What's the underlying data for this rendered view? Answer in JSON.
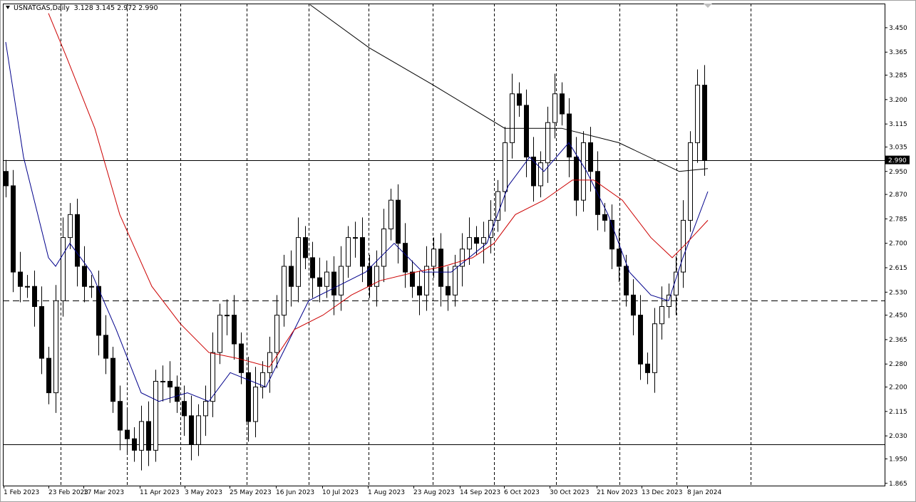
{
  "header": {
    "symbol": "USNATGAS,Daily",
    "ohlc": "3.128 3.145 2.972 2.990"
  },
  "current_price_label": "2.990",
  "colors": {
    "background": "#ffffff",
    "candle_up": "#ffffff",
    "candle_down": "#000000",
    "ma_fast": "#00008b",
    "ma_mid": "#cc0000",
    "ma_slow": "#000000",
    "price_label_bg": "#000000"
  },
  "chart_data": {
    "type": "candlestick",
    "title": "USNATGAS,Daily",
    "ylim": [
      1.857,
      3.534
    ],
    "grid": false,
    "y_ticks": [
      "3.450",
      "3.365",
      "3.285",
      "3.200",
      "3.115",
      "3.035",
      "2.950",
      "2.870",
      "2.785",
      "2.700",
      "2.615",
      "2.530",
      "2.450",
      "2.365",
      "2.280",
      "2.200",
      "2.115",
      "2.030",
      "1.950",
      "1.865"
    ],
    "x_ticks": [
      "1 Feb 2023",
      "23 Feb 2023",
      "17 Mar 2023",
      "11 Apr 2023",
      "3 May 2023",
      "25 May 2023",
      "16 Jun 2023",
      "10 Jul 2023",
      "1 Aug 2023",
      "23 Aug 2023",
      "14 Sep 2023",
      "6 Oct 2023",
      "30 Oct 2023",
      "21 Nov 2023",
      "13 Dec 2023",
      "8 Jan 2024"
    ],
    "horizontal_lines": [
      {
        "value": 2.99,
        "style": "solid"
      },
      {
        "value": 2.5,
        "style": "dashed"
      },
      {
        "value": 2.0,
        "style": "solid"
      }
    ],
    "closes": [
      2.9,
      2.6,
      2.55,
      2.55,
      2.48,
      2.3,
      2.18,
      2.5,
      2.72,
      2.8,
      2.62,
      2.55,
      2.55,
      2.38,
      2.3,
      2.15,
      2.05,
      2.02,
      1.98,
      2.08,
      1.98,
      2.22,
      2.22,
      2.2,
      2.15,
      2.1,
      2.0,
      2.1,
      2.15,
      2.32,
      2.45,
      2.45,
      2.35,
      2.25,
      2.08,
      2.2,
      2.25,
      2.32,
      2.45,
      2.62,
      2.55,
      2.72,
      2.65,
      2.58,
      2.55,
      2.6,
      2.52,
      2.62,
      2.72,
      2.72,
      2.62,
      2.55,
      2.62,
      2.75,
      2.85,
      2.7,
      2.6,
      2.55,
      2.52,
      2.62,
      2.68,
      2.55,
      2.52,
      2.62,
      2.68,
      2.72,
      2.7,
      2.72,
      2.78,
      2.88,
      3.05,
      3.22,
      3.18,
      3.0,
      2.9,
      2.98,
      3.12,
      3.22,
      3.15,
      3.0,
      2.85,
      3.05,
      2.95,
      2.8,
      2.78,
      2.68,
      2.62,
      2.52,
      2.45,
      2.28,
      2.25,
      2.42,
      2.48,
      2.52,
      2.6,
      2.78,
      3.05,
      3.25,
      2.99
    ],
    "moving_averages": [
      {
        "color": "#00008b",
        "points": [
          [
            0,
            3.4
          ],
          [
            2.5,
            3.0
          ],
          [
            6,
            2.65
          ],
          [
            7,
            2.62
          ],
          [
            9,
            2.7
          ],
          [
            12,
            2.6
          ],
          [
            15.5,
            2.4
          ],
          [
            19,
            2.18
          ],
          [
            21.5,
            2.15
          ],
          [
            25.5,
            2.18
          ],
          [
            28.5,
            2.15
          ],
          [
            31.5,
            2.25
          ],
          [
            36.5,
            2.2
          ],
          [
            39.5,
            2.35
          ],
          [
            42.5,
            2.5
          ],
          [
            46.5,
            2.55
          ],
          [
            50.5,
            2.6
          ],
          [
            54.5,
            2.7
          ],
          [
            58.5,
            2.6
          ],
          [
            62.5,
            2.6
          ],
          [
            67.5,
            2.7
          ],
          [
            70.5,
            2.9
          ],
          [
            73.5,
            3.0
          ],
          [
            75.5,
            2.95
          ],
          [
            79,
            3.05
          ],
          [
            81.5,
            2.95
          ],
          [
            84.5,
            2.8
          ],
          [
            87.5,
            2.6
          ],
          [
            90.5,
            2.52
          ],
          [
            93,
            2.5
          ],
          [
            95,
            2.65
          ],
          [
            98.5,
            2.88
          ]
        ]
      },
      {
        "color": "#cc0000",
        "points": [
          [
            6,
            3.5
          ],
          [
            8.5,
            3.35
          ],
          [
            12.5,
            3.1
          ],
          [
            16,
            2.8
          ],
          [
            20.5,
            2.55
          ],
          [
            24.5,
            2.42
          ],
          [
            28.5,
            2.32
          ],
          [
            32.5,
            2.3
          ],
          [
            37,
            2.27
          ],
          [
            40.5,
            2.4
          ],
          [
            44.5,
            2.45
          ],
          [
            48.5,
            2.52
          ],
          [
            52.5,
            2.57
          ],
          [
            57.5,
            2.6
          ],
          [
            61.5,
            2.62
          ],
          [
            65.5,
            2.65
          ],
          [
            68.5,
            2.7
          ],
          [
            71.5,
            2.8
          ],
          [
            75.5,
            2.85
          ],
          [
            79.5,
            2.92
          ],
          [
            82.5,
            2.92
          ],
          [
            86.5,
            2.85
          ],
          [
            90.5,
            2.72
          ],
          [
            93.5,
            2.65
          ],
          [
            95.5,
            2.7
          ],
          [
            98.5,
            2.78
          ]
        ]
      },
      {
        "color": "#000000",
        "points": [
          [
            42.7,
            3.53
          ],
          [
            51,
            3.38
          ],
          [
            60,
            3.25
          ],
          [
            70,
            3.1
          ],
          [
            78,
            3.1
          ],
          [
            86,
            3.05
          ],
          [
            94.5,
            2.95
          ],
          [
            98.5,
            2.96
          ]
        ]
      }
    ]
  }
}
